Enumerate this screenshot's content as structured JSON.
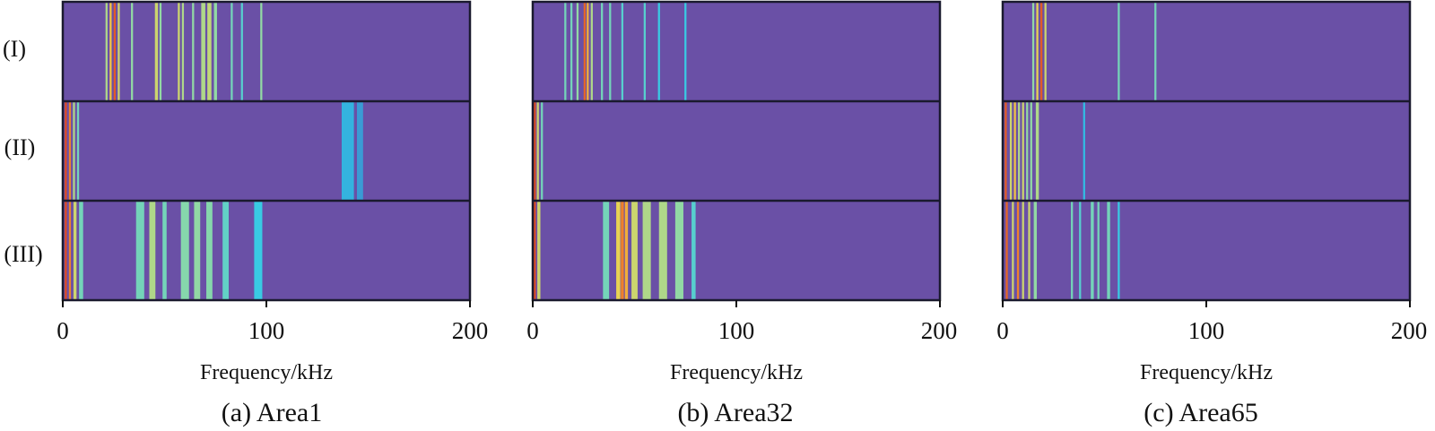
{
  "row_labels": [
    "(I)",
    "(II)",
    "(III)"
  ],
  "colors": {
    "background_band": "#6a50a6",
    "frame": "#1a1a2e",
    "colormap": [
      "#6a50a6",
      "#3f86c9",
      "#2fc8ea",
      "#92d9a4",
      "#f2d24a",
      "#f08a2c",
      "#d7301f"
    ]
  },
  "chart_data": [
    {
      "type": "heatmap",
      "caption": "(a) Area1",
      "xlabel": "Frequency/kHz",
      "xlim": [
        0,
        200
      ],
      "xticks": [
        0,
        100,
        200
      ],
      "rows": [
        "(I)",
        "(II)",
        "(III)"
      ],
      "intensity_scale": "0 (background) to 1 (peak)",
      "bands": [
        [
          {
            "f": 21.5,
            "w": 1.0,
            "v": 0.55
          },
          {
            "f": 23.5,
            "w": 1.0,
            "v": 0.7
          },
          {
            "f": 25.5,
            "w": 1.0,
            "v": 0.92
          },
          {
            "f": 27.5,
            "w": 1.0,
            "v": 0.6
          },
          {
            "f": 34,
            "w": 1.0,
            "v": 0.5
          },
          {
            "f": 46,
            "w": 1.5,
            "v": 0.6
          },
          {
            "f": 48,
            "w": 1.0,
            "v": 0.5
          },
          {
            "f": 57,
            "w": 1.0,
            "v": 0.6
          },
          {
            "f": 59,
            "w": 1.0,
            "v": 0.55
          },
          {
            "f": 64,
            "w": 1.0,
            "v": 0.5
          },
          {
            "f": 69,
            "w": 2.0,
            "v": 0.55
          },
          {
            "f": 72,
            "w": 2.0,
            "v": 0.58
          },
          {
            "f": 75,
            "w": 1.5,
            "v": 0.5
          },
          {
            "f": 83,
            "w": 1.0,
            "v": 0.45
          },
          {
            "f": 88,
            "w": 1.0,
            "v": 0.4
          },
          {
            "f": 97.5,
            "w": 1.0,
            "v": 0.5
          }
        ],
        [
          {
            "f": 1.5,
            "w": 1.0,
            "v": 0.95
          },
          {
            "f": 3.5,
            "w": 1.0,
            "v": 0.85
          },
          {
            "f": 5.5,
            "w": 1.0,
            "v": 0.55
          },
          {
            "f": 7.5,
            "w": 1.0,
            "v": 0.45
          },
          {
            "f": 140,
            "w": 6.0,
            "v": 0.28
          },
          {
            "f": 146,
            "w": 3.0,
            "v": 0.22
          }
        ],
        [
          {
            "f": 1.5,
            "w": 1.0,
            "v": 0.95
          },
          {
            "f": 3.5,
            "w": 1.0,
            "v": 0.85
          },
          {
            "f": 6,
            "w": 1.5,
            "v": 0.6
          },
          {
            "f": 9,
            "w": 2.0,
            "v": 0.45
          },
          {
            "f": 38,
            "w": 4.0,
            "v": 0.45
          },
          {
            "f": 44,
            "w": 3.0,
            "v": 0.55
          },
          {
            "f": 50,
            "w": 2.0,
            "v": 0.45
          },
          {
            "f": 60,
            "w": 4.0,
            "v": 0.48
          },
          {
            "f": 66,
            "w": 3.0,
            "v": 0.5
          },
          {
            "f": 72,
            "w": 3.0,
            "v": 0.48
          },
          {
            "f": 80,
            "w": 3.0,
            "v": 0.42
          },
          {
            "f": 96,
            "w": 4.0,
            "v": 0.35
          }
        ]
      ]
    },
    {
      "type": "heatmap",
      "caption": "(b) Area32",
      "xlabel": "Frequency/kHz",
      "xlim": [
        0,
        200
      ],
      "xticks": [
        0,
        100,
        200
      ],
      "rows": [
        "(I)",
        "(II)",
        "(III)"
      ],
      "intensity_scale": "0 (background) to 1 (peak)",
      "bands": [
        [
          {
            "f": 16,
            "w": 1.0,
            "v": 0.45
          },
          {
            "f": 19,
            "w": 1.0,
            "v": 0.45
          },
          {
            "f": 22,
            "w": 1.0,
            "v": 0.5
          },
          {
            "f": 25.5,
            "w": 1.0,
            "v": 0.9
          },
          {
            "f": 27,
            "w": 1.0,
            "v": 0.75
          },
          {
            "f": 29,
            "w": 1.0,
            "v": 0.55
          },
          {
            "f": 34,
            "w": 1.0,
            "v": 0.45
          },
          {
            "f": 38,
            "w": 1.0,
            "v": 0.45
          },
          {
            "f": 44,
            "w": 1.0,
            "v": 0.4
          },
          {
            "f": 55,
            "w": 1.0,
            "v": 0.4
          },
          {
            "f": 62,
            "w": 1.0,
            "v": 0.35
          },
          {
            "f": 75,
            "w": 1.0,
            "v": 0.35
          }
        ],
        [
          {
            "f": 1.0,
            "w": 1.0,
            "v": 0.95
          },
          {
            "f": 2.5,
            "w": 1.0,
            "v": 0.6
          },
          {
            "f": 4.5,
            "w": 1.0,
            "v": 0.45
          }
        ],
        [
          {
            "f": 1.0,
            "w": 1.0,
            "v": 0.95
          },
          {
            "f": 3,
            "w": 1.5,
            "v": 0.6
          },
          {
            "f": 36,
            "w": 3.0,
            "v": 0.45
          },
          {
            "f": 42,
            "w": 2.0,
            "v": 0.65
          },
          {
            "f": 44,
            "w": 1.5,
            "v": 0.85
          },
          {
            "f": 46,
            "w": 1.5,
            "v": 0.75
          },
          {
            "f": 50,
            "w": 3.0,
            "v": 0.6
          },
          {
            "f": 56,
            "w": 4.0,
            "v": 0.55
          },
          {
            "f": 64,
            "w": 4.0,
            "v": 0.55
          },
          {
            "f": 72,
            "w": 4.0,
            "v": 0.5
          },
          {
            "f": 79,
            "w": 2.0,
            "v": 0.4
          }
        ]
      ]
    },
    {
      "type": "heatmap",
      "caption": "(c) Area65",
      "xlabel": "Frequency/kHz",
      "xlim": [
        0,
        200
      ],
      "xticks": [
        0,
        100,
        200
      ],
      "rows": [
        "(I)",
        "(II)",
        "(III)"
      ],
      "intensity_scale": "0 (background) to 1 (peak)",
      "bands": [
        [
          {
            "f": 15,
            "w": 1.0,
            "v": 0.5
          },
          {
            "f": 17,
            "w": 1.0,
            "v": 0.65
          },
          {
            "f": 19,
            "w": 1.0,
            "v": 0.92
          },
          {
            "f": 21,
            "w": 1.0,
            "v": 0.6
          },
          {
            "f": 57,
            "w": 1.0,
            "v": 0.45
          },
          {
            "f": 75,
            "w": 1.0,
            "v": 0.45
          }
        ],
        [
          {
            "f": 1.5,
            "w": 1.0,
            "v": 0.92
          },
          {
            "f": 4,
            "w": 1.0,
            "v": 0.6
          },
          {
            "f": 6,
            "w": 1.0,
            "v": 0.7
          },
          {
            "f": 8,
            "w": 1.0,
            "v": 0.55
          },
          {
            "f": 10,
            "w": 1.0,
            "v": 0.6
          },
          {
            "f": 12,
            "w": 1.0,
            "v": 0.5
          },
          {
            "f": 14,
            "w": 1.0,
            "v": 0.5
          },
          {
            "f": 17,
            "w": 1.5,
            "v": 0.55
          },
          {
            "f": 40,
            "w": 1.0,
            "v": 0.3
          }
        ],
        [
          {
            "f": 2,
            "w": 1.0,
            "v": 0.9
          },
          {
            "f": 5,
            "w": 1.0,
            "v": 0.6
          },
          {
            "f": 7.5,
            "w": 1.0,
            "v": 0.85
          },
          {
            "f": 10,
            "w": 1.0,
            "v": 0.6
          },
          {
            "f": 13,
            "w": 1.0,
            "v": 0.6
          },
          {
            "f": 16,
            "w": 1.5,
            "v": 0.5
          },
          {
            "f": 34,
            "w": 1.0,
            "v": 0.45
          },
          {
            "f": 38,
            "w": 1.0,
            "v": 0.4
          },
          {
            "f": 44,
            "w": 1.5,
            "v": 0.45
          },
          {
            "f": 47,
            "w": 1.0,
            "v": 0.45
          },
          {
            "f": 52,
            "w": 1.5,
            "v": 0.45
          },
          {
            "f": 57,
            "w": 1.0,
            "v": 0.35
          }
        ]
      ]
    }
  ]
}
